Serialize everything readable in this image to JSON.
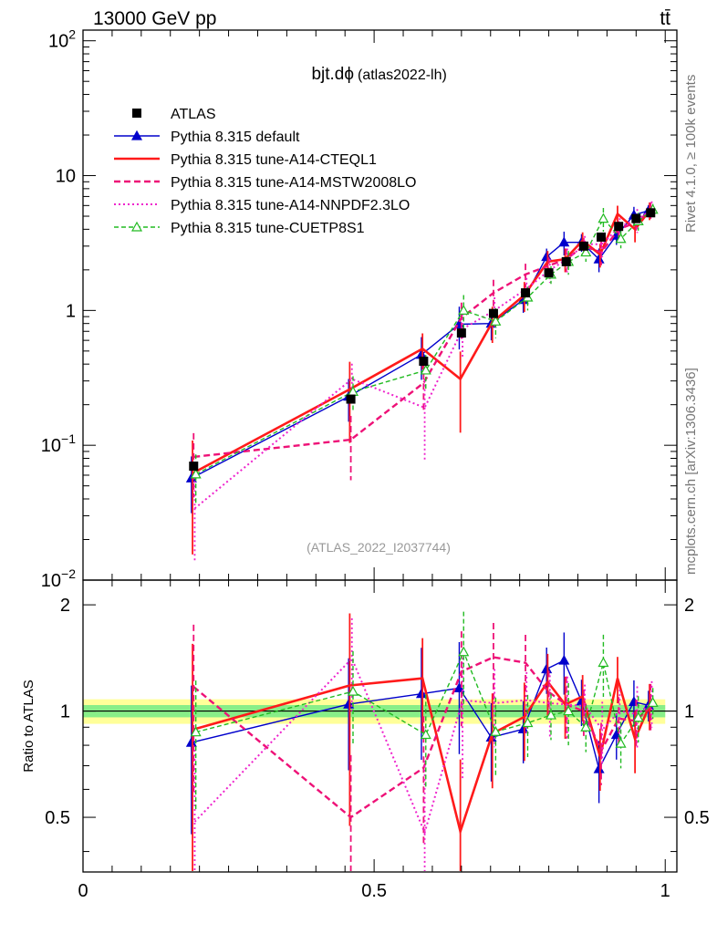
{
  "header": {
    "energy_label": "13000 GeV pp",
    "process_label": "tt̄",
    "rivet_label": "Rivet 4.1.0, ≥ 100k events",
    "source_label": "mcplots.cern.ch [arXiv:1306.3436]"
  },
  "chart_data": {
    "type": "line",
    "title": "bjt.dϕ",
    "title_suffix": "(atlas2022-lh)",
    "analysis_tag": "(ATLAS_2022_I2037744)",
    "xlabel": "",
    "ylabel_ratio": "Ratio to ATLAS",
    "xlim": [
      0,
      1.02
    ],
    "ylim": [
      0.01,
      120
    ],
    "ylim_ratio": [
      0.35,
      2.35
    ],
    "yscale": "log",
    "x_ticks": [
      0,
      0.5,
      1
    ],
    "x_tick_labels": [
      "0",
      "0.5",
      "1"
    ],
    "y_ticks": [
      0.01,
      0.1,
      1,
      10,
      100
    ],
    "y_tick_labels": [
      [
        "10",
        "−2"
      ],
      [
        "10",
        "−1"
      ],
      [
        "1",
        ""
      ],
      [
        "10",
        ""
      ],
      [
        "10",
        "2"
      ]
    ],
    "ratio_ticks": [
      0.5,
      1,
      2
    ],
    "ratio_tick_labels": [
      "0.5",
      "1",
      "2"
    ],
    "ratio_bands": {
      "inner": 0.04,
      "outer": 0.08,
      "inner_color": "#88ee88",
      "outer_color": "#ffff99"
    },
    "x": [
      0.19,
      0.46,
      0.585,
      0.65,
      0.705,
      0.76,
      0.8,
      0.83,
      0.86,
      0.89,
      0.92,
      0.95,
      0.975
    ],
    "data": {
      "name": "ATLAS",
      "values": [
        0.07,
        0.22,
        0.42,
        0.68,
        0.95,
        1.35,
        1.9,
        2.3,
        3.0,
        3.5,
        4.2,
        4.8,
        5.3
      ]
    },
    "series": [
      {
        "name": "Pythia 8.315 default",
        "color": "#0000cc",
        "dash": "",
        "width": 1.4,
        "marker": "triangle-filled",
        "values": [
          0.057,
          0.23,
          0.47,
          0.79,
          0.8,
          1.2,
          2.5,
          3.2,
          3.2,
          2.4,
          3.6,
          5.1,
          5.5
        ],
        "rel_err": [
          0.45,
          0.35,
          0.35,
          0.35,
          0.25,
          0.2,
          0.15,
          0.2,
          0.15,
          0.2,
          0.15,
          0.15,
          0.1
        ]
      },
      {
        "name": "Pythia 8.315 tune-A14-CTEQL1",
        "color": "#ff1a1a",
        "dash": "",
        "width": 2.6,
        "marker": "none",
        "values": [
          0.062,
          0.26,
          0.52,
          0.31,
          0.82,
          1.3,
          2.3,
          2.4,
          3.3,
          2.6,
          5.2,
          4.0,
          5.5
        ],
        "rel_err": [
          0.75,
          0.6,
          0.3,
          0.6,
          0.3,
          0.25,
          0.2,
          0.2,
          0.15,
          0.2,
          0.15,
          0.2,
          0.15
        ]
      },
      {
        "name": "Pythia 8.315 tune-A14-MSTW2008LO",
        "color": "#ee1177",
        "dash": "7,4",
        "width": 2.4,
        "marker": "none",
        "values": [
          0.082,
          0.11,
          0.29,
          0.88,
          1.35,
          1.85,
          2.15,
          2.4,
          3.0,
          2.7,
          4.0,
          4.5,
          5.5
        ],
        "rel_err": [
          0.5,
          0.5,
          0.4,
          0.3,
          0.25,
          0.2,
          0.15,
          0.2,
          0.15,
          0.2,
          0.15,
          0.15,
          0.15
        ]
      },
      {
        "name": "Pythia 8.315 tune-A14-NNPDF2.3LO",
        "color": "#ee22cc",
        "dash": "2,3",
        "width": 2.0,
        "marker": "none",
        "values": [
          0.034,
          0.31,
          0.19,
          0.73,
          1.0,
          1.45,
          2.0,
          2.4,
          3.1,
          3.1,
          4.2,
          4.7,
          5.6
        ],
        "rel_err": [
          0.6,
          0.3,
          0.6,
          0.4,
          0.25,
          0.2,
          0.2,
          0.2,
          0.15,
          0.2,
          0.15,
          0.2,
          0.15
        ]
      },
      {
        "name": "Pythia 8.315 tune-CUETP8S1",
        "color": "#22bb22",
        "dash": "5,3",
        "width": 1.4,
        "marker": "triangle-open",
        "values": [
          0.061,
          0.25,
          0.36,
          1.0,
          0.83,
          1.25,
          1.85,
          2.3,
          2.7,
          4.8,
          3.4,
          4.6,
          5.6
        ],
        "rel_err": [
          0.4,
          0.3,
          0.3,
          0.3,
          0.25,
          0.2,
          0.15,
          0.2,
          0.15,
          0.2,
          0.15,
          0.15,
          0.1
        ]
      }
    ]
  }
}
